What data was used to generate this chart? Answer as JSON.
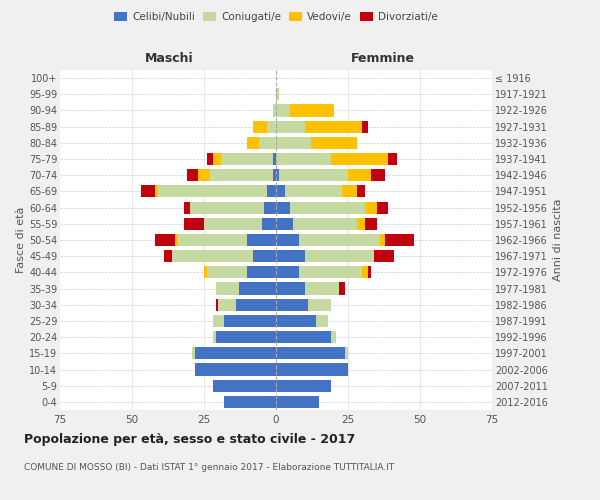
{
  "age_groups": [
    "0-4",
    "5-9",
    "10-14",
    "15-19",
    "20-24",
    "25-29",
    "30-34",
    "35-39",
    "40-44",
    "45-49",
    "50-54",
    "55-59",
    "60-64",
    "65-69",
    "70-74",
    "75-79",
    "80-84",
    "85-89",
    "90-94",
    "95-99",
    "100+"
  ],
  "birth_years": [
    "2012-2016",
    "2007-2011",
    "2002-2006",
    "1997-2001",
    "1992-1996",
    "1987-1991",
    "1982-1986",
    "1977-1981",
    "1972-1976",
    "1967-1971",
    "1962-1966",
    "1957-1961",
    "1952-1956",
    "1947-1951",
    "1942-1946",
    "1937-1941",
    "1932-1936",
    "1927-1931",
    "1922-1926",
    "1917-1921",
    "≤ 1916"
  ],
  "maschi": {
    "celibi": [
      18,
      22,
      28,
      28,
      21,
      18,
      14,
      13,
      10,
      8,
      10,
      5,
      4,
      3,
      1,
      1,
      0,
      0,
      0,
      0,
      0
    ],
    "coniugati": [
      0,
      0,
      0,
      1,
      1,
      4,
      6,
      8,
      14,
      28,
      24,
      20,
      26,
      38,
      22,
      18,
      6,
      3,
      1,
      0,
      0
    ],
    "vedovi": [
      0,
      0,
      0,
      0,
      0,
      0,
      0,
      0,
      1,
      0,
      1,
      0,
      0,
      1,
      4,
      3,
      4,
      5,
      0,
      0,
      0
    ],
    "divorziati": [
      0,
      0,
      0,
      0,
      0,
      0,
      1,
      0,
      0,
      3,
      7,
      7,
      2,
      5,
      4,
      2,
      0,
      0,
      0,
      0,
      0
    ]
  },
  "femmine": {
    "nubili": [
      15,
      19,
      25,
      24,
      19,
      14,
      11,
      10,
      8,
      10,
      8,
      6,
      5,
      3,
      1,
      0,
      0,
      0,
      0,
      0,
      0
    ],
    "coniugate": [
      0,
      0,
      0,
      1,
      2,
      4,
      8,
      12,
      22,
      24,
      28,
      22,
      26,
      20,
      24,
      19,
      12,
      10,
      5,
      1,
      0
    ],
    "vedove": [
      0,
      0,
      0,
      0,
      0,
      0,
      0,
      0,
      2,
      0,
      2,
      3,
      4,
      5,
      8,
      20,
      16,
      20,
      15,
      0,
      0
    ],
    "divorziate": [
      0,
      0,
      0,
      0,
      0,
      0,
      0,
      2,
      1,
      7,
      10,
      4,
      4,
      3,
      5,
      3,
      0,
      2,
      0,
      0,
      0
    ]
  },
  "colors": {
    "celibi": "#4472c4",
    "coniugati": "#c5d9a0",
    "vedovi": "#ffc000",
    "divorziati": "#c0000c"
  },
  "title": "Popolazione per età, sesso e stato civile - 2017",
  "subtitle": "COMUNE DI MOSSO (BI) - Dati ISTAT 1° gennaio 2017 - Elaborazione TUTTITALIA.IT",
  "xlabel_left": "Maschi",
  "xlabel_right": "Femmine",
  "ylabel_left": "Fasce di età",
  "ylabel_right": "Anni di nascita",
  "xlim": 75,
  "bg_color": "#f0f0f0",
  "plot_bg": "#ffffff",
  "legend_labels": [
    "Celibi/Nubili",
    "Coniugati/e",
    "Vedovi/e",
    "Divorziati/e"
  ]
}
